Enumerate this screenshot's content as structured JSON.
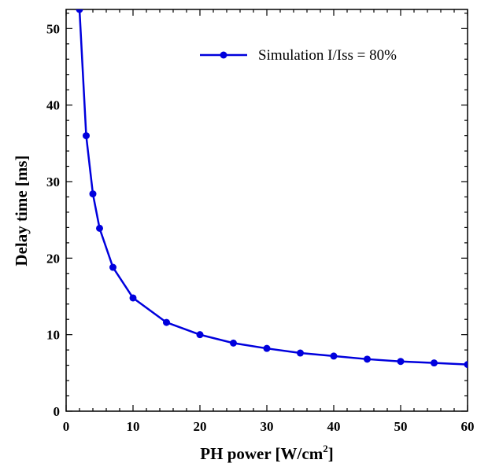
{
  "chart_data": {
    "type": "line",
    "title": "",
    "xlabel": "PH power [W/cm",
    "xlabel_superscript": "2",
    "xlabel_suffix": "]",
    "ylabel": "Delay time [ms]",
    "xlim": [
      0,
      60
    ],
    "ylim": [
      0,
      52.5
    ],
    "xticks": [
      0,
      10,
      20,
      30,
      40,
      50,
      60
    ],
    "yticks": [
      0,
      10,
      20,
      30,
      40,
      50
    ],
    "grid": false,
    "legend_position": "top-right",
    "series": [
      {
        "name": "Simulation I/Iss = 80%",
        "color": "#0000dd",
        "marker": "circle",
        "x": [
          2,
          3,
          4,
          5,
          7,
          10,
          15,
          20,
          25,
          30,
          35,
          40,
          45,
          50,
          55,
          60
        ],
        "y": [
          52.5,
          36.0,
          28.4,
          23.9,
          18.8,
          14.8,
          11.6,
          10.0,
          8.9,
          8.2,
          7.6,
          7.2,
          6.8,
          6.5,
          6.3,
          6.1
        ]
      }
    ]
  }
}
